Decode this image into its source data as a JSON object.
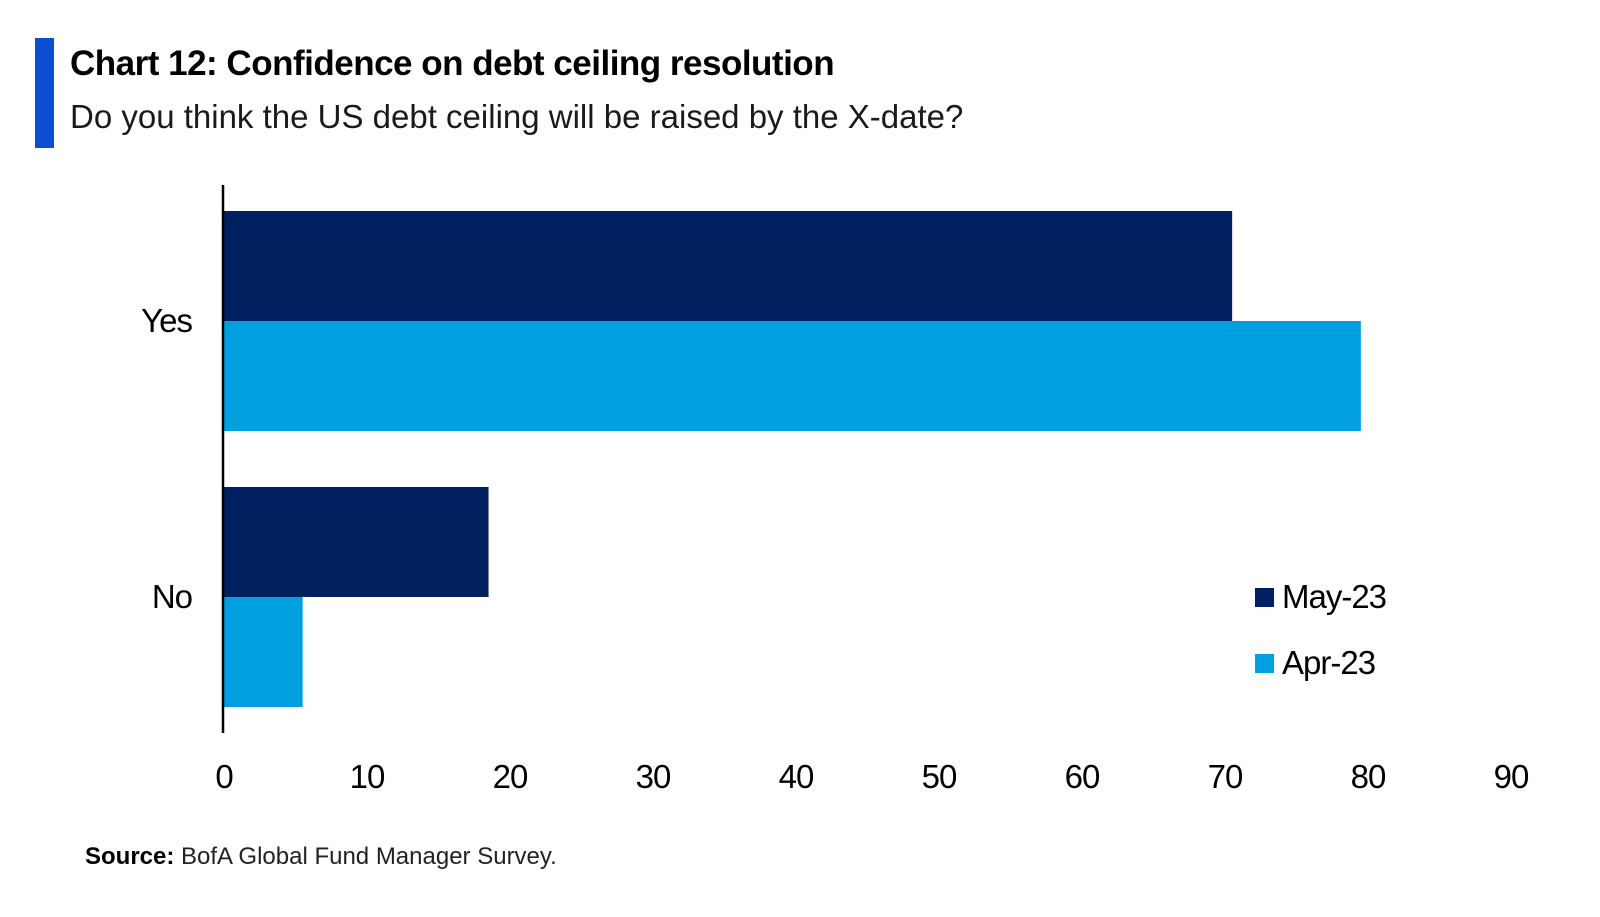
{
  "header": {
    "title": "Chart 12: Confidence on debt ceiling resolution",
    "subtitle": "Do you think the US debt ceiling will be raised by the X-date?"
  },
  "footer": {
    "source_prefix": "Source:",
    "source_text": " BofA Global Fund Manager Survey."
  },
  "colors": {
    "accent": "#0a4fd1"
  },
  "chart_data": {
    "type": "bar",
    "orientation": "horizontal",
    "categories": [
      "Yes",
      "No"
    ],
    "series": [
      {
        "name": "May-23",
        "color": "#002060",
        "values": [
          70.5,
          18.5
        ]
      },
      {
        "name": "Apr-23",
        "color": "#00a0e0",
        "values": [
          79.5,
          5.5
        ]
      }
    ],
    "xticks": [
      "0",
      "10",
      "20",
      "30",
      "40",
      "50",
      "60",
      "70",
      "80",
      "90"
    ],
    "xlim": [
      0,
      90
    ],
    "grid": false,
    "legend_position": "bottom-right"
  }
}
